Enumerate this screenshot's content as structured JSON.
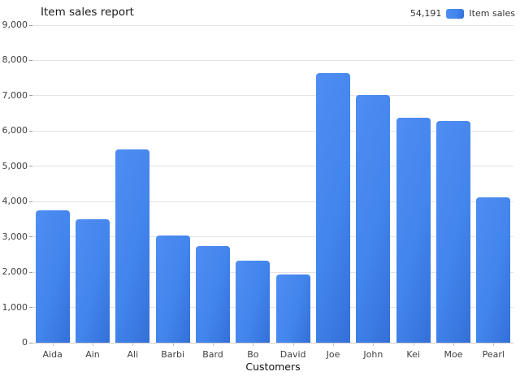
{
  "legend": {
    "value": "54,191",
    "label": "Item sales"
  },
  "chart_data": {
    "type": "bar",
    "title": "Item sales report",
    "xlabel": "Customers",
    "ylabel": "",
    "series_name": "Item sales",
    "total_label": "54,191",
    "categories": [
      "Aida",
      "Ain",
      "Ali",
      "Barbi",
      "Bard",
      "Bo",
      "David",
      "Joe",
      "John",
      "Kei",
      "Moe",
      "Pearl"
    ],
    "values": [
      3750,
      3490,
      5470,
      3040,
      2730,
      2335,
      1925,
      7650,
      7010,
      6380,
      6285,
      4126
    ],
    "ylim": [
      0,
      9000
    ],
    "ytick_step": 1000,
    "ytick_labels": [
      "0",
      "1,000",
      "2,000",
      "3,000",
      "4,000",
      "5,000",
      "6,000",
      "7,000",
      "8,000",
      "9,000"
    ],
    "grid": true,
    "legend_position": "top-right"
  },
  "colors": {
    "bar": "#4285ec",
    "bar_light": "#4f8df3",
    "bar_dark": "#3370d8",
    "grid": "#e4e4e4",
    "axis_line": "#cfcfcf",
    "y_tick": "#9d9d9d",
    "x_tick": "#c4c4c4",
    "label": "#3f3f3f",
    "title": "#1b1b1b"
  }
}
